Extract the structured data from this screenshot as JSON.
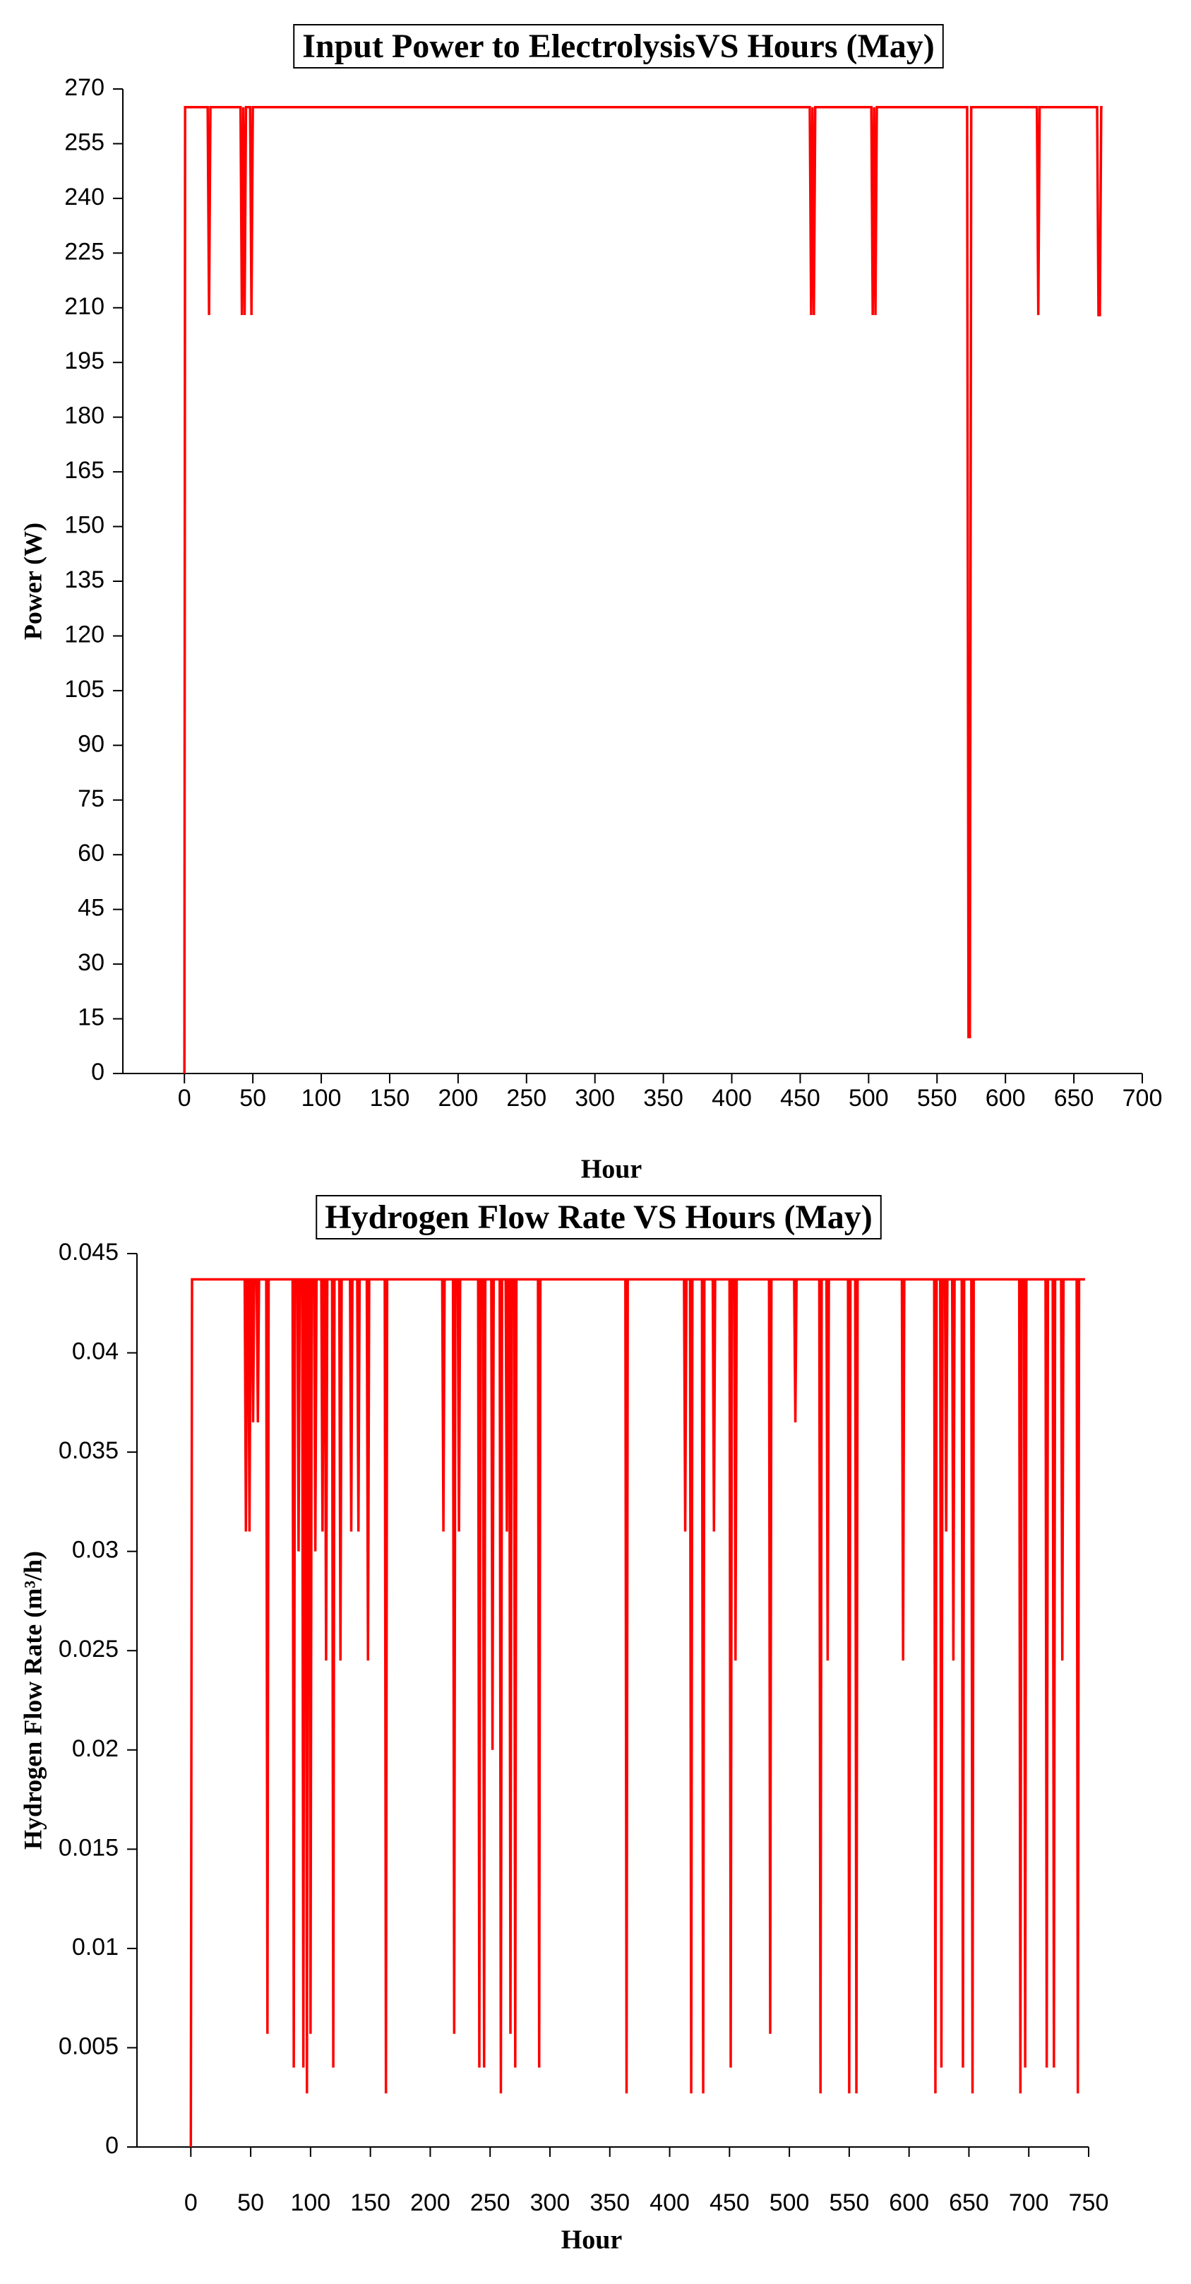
{
  "chart_data": [
    {
      "type": "line",
      "title": "Input Power to ElectrolysisVS Hours (May)",
      "x_label": "Hour",
      "y_label": "Power (W)",
      "xlim": [
        -45,
        700
      ],
      "xticks": [
        0,
        50,
        100,
        150,
        200,
        250,
        300,
        350,
        400,
        450,
        500,
        550,
        600,
        650,
        700
      ],
      "ylim": [
        0,
        270
      ],
      "yticks": [
        0,
        15,
        30,
        45,
        60,
        75,
        90,
        105,
        120,
        135,
        150,
        165,
        180,
        195,
        210,
        225,
        240,
        255,
        270
      ],
      "series": [
        {
          "name": "Power",
          "color": "#ff0000",
          "x": [
            0,
            0.5,
            17,
            18,
            19,
            41,
            42,
            43,
            44,
            45,
            48,
            49,
            50,
            457,
            458,
            459,
            460,
            461,
            502,
            503,
            504,
            505,
            506,
            572,
            573,
            574,
            575,
            623,
            624,
            625,
            667,
            668,
            669,
            670,
            671
          ],
          "values": [
            0,
            265,
            265,
            208,
            265,
            265,
            208,
            265,
            208,
            265,
            265,
            208,
            265,
            265,
            208,
            265,
            208,
            265,
            265,
            208,
            265,
            208,
            265,
            265,
            10,
            10,
            265,
            265,
            208,
            265,
            265,
            208,
            208,
            265,
            265
          ]
        }
      ]
    },
    {
      "type": "line",
      "title": "Hydrogen Flow Rate VS Hours (May)",
      "x_label": "Hour",
      "y_label": "Hydrogen Flow Rate (m³/h)",
      "xlim": [
        -45,
        750
      ],
      "xticks": [
        0,
        50,
        100,
        150,
        200,
        250,
        300,
        350,
        400,
        450,
        500,
        550,
        600,
        650,
        700,
        750
      ],
      "ylim": [
        0,
        0.045
      ],
      "yticks": [
        0,
        0.005,
        0.01,
        0.015,
        0.02,
        0.025,
        0.03,
        0.035,
        0.04,
        0.045
      ],
      "series": [
        {
          "name": "Hydrogen Flow Rate",
          "color": "#ff0000",
          "x": [
            0,
            1,
            45,
            46,
            47,
            48,
            49,
            50,
            51,
            52,
            53,
            55,
            56,
            57,
            63,
            64,
            65,
            85,
            86,
            87,
            89,
            90,
            91,
            93,
            94,
            95,
            96,
            97,
            98,
            99,
            100,
            101,
            103,
            104,
            105,
            109,
            110,
            111,
            112,
            113,
            114,
            118,
            119,
            120,
            124,
            125,
            126,
            133,
            134,
            135,
            139,
            140,
            141,
            147,
            148,
            149,
            162,
            163,
            164,
            210,
            211,
            212,
            219,
            220,
            221,
            223,
            224,
            225,
            240,
            241,
            242,
            244,
            245,
            246,
            251,
            252,
            253,
            258,
            259,
            260,
            263,
            264,
            265,
            266,
            267,
            268,
            270,
            271,
            272,
            290,
            291,
            292,
            363,
            364,
            365,
            412,
            413,
            414,
            417,
            418,
            419,
            427,
            428,
            429,
            436,
            437,
            438,
            450,
            451,
            452,
            454,
            455,
            456,
            483,
            484,
            485,
            504,
            505,
            506,
            525,
            526,
            527,
            531,
            532,
            533,
            549,
            550,
            551,
            555,
            556,
            557,
            594,
            595,
            596,
            621,
            622,
            623,
            626,
            627,
            628,
            630,
            631,
            632,
            636,
            637,
            638,
            644,
            645,
            646,
            652,
            653,
            654,
            692,
            693,
            694,
            696,
            697,
            698,
            714,
            715,
            716,
            720,
            721,
            722,
            727,
            728,
            729,
            740,
            741,
            742,
            747
          ],
          "values": [
            0,
            0.0437,
            0.0437,
            0.031,
            0.0437,
            0.0437,
            0.031,
            0.0437,
            0.0437,
            0.0365,
            0.0437,
            0.0437,
            0.0365,
            0.0437,
            0.0437,
            0.0057,
            0.0437,
            0.0437,
            0.004,
            0.0437,
            0.0437,
            0.03,
            0.0437,
            0.0437,
            0.004,
            0.0437,
            0.0437,
            0.0027,
            0.0437,
            0.0437,
            0.0057,
            0.0437,
            0.0437,
            0.03,
            0.0437,
            0.0437,
            0.031,
            0.0437,
            0.0437,
            0.0245,
            0.0437,
            0.0437,
            0.004,
            0.0437,
            0.0437,
            0.0245,
            0.0437,
            0.0437,
            0.031,
            0.0437,
            0.0437,
            0.031,
            0.0437,
            0.0437,
            0.0245,
            0.0437,
            0.0437,
            0.0027,
            0.0437,
            0.0437,
            0.031,
            0.0437,
            0.0437,
            0.0057,
            0.0437,
            0.0437,
            0.031,
            0.0437,
            0.0437,
            0.004,
            0.0437,
            0.0437,
            0.004,
            0.0437,
            0.0437,
            0.02,
            0.0437,
            0.0437,
            0.0027,
            0.0437,
            0.0437,
            0.031,
            0.0437,
            0.0437,
            0.0057,
            0.0437,
            0.0437,
            0.004,
            0.0437,
            0.0437,
            0.004,
            0.0437,
            0.0437,
            0.0027,
            0.0437,
            0.0437,
            0.031,
            0.0437,
            0.0437,
            0.0027,
            0.0437,
            0.0437,
            0.0027,
            0.0437,
            0.0437,
            0.031,
            0.0437,
            0.0437,
            0.004,
            0.0437,
            0.0437,
            0.0245,
            0.0437,
            0.0437,
            0.0057,
            0.0437,
            0.0437,
            0.0365,
            0.0437,
            0.0437,
            0.0027,
            0.0437,
            0.0437,
            0.0245,
            0.0437,
            0.0437,
            0.0027,
            0.0437,
            0.0437,
            0.0027,
            0.0437,
            0.0437,
            0.0245,
            0.0437,
            0.0437,
            0.0027,
            0.0437,
            0.0437,
            0.004,
            0.0437,
            0.0437,
            0.031,
            0.0437,
            0.0437,
            0.0245,
            0.0437,
            0.0437,
            0.004,
            0.0437,
            0.0437,
            0.0027,
            0.0437,
            0.0437,
            0.0027,
            0.0437,
            0.0437,
            0.004,
            0.0437,
            0.0437,
            0.004,
            0.0437,
            0.0437,
            0.004,
            0.0437,
            0.0437,
            0.0245,
            0.0437,
            0.0437,
            0.0027,
            0.0437,
            0.0437
          ]
        }
      ]
    }
  ]
}
